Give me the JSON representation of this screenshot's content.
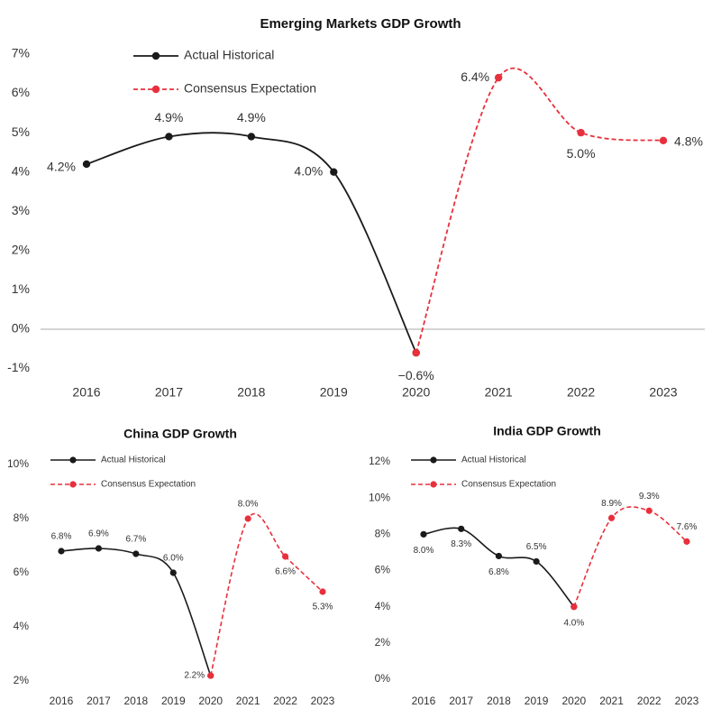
{
  "chart_data": [
    {
      "type": "line",
      "title": "Emerging Markets GDP Growth",
      "categories": [
        "2016",
        "2017",
        "2018",
        "2019",
        "2020",
        "2021",
        "2022",
        "2023"
      ],
      "series": [
        {
          "name": "Actual Historical",
          "color": "#1a1a1a",
          "dash": false,
          "values": [
            4.2,
            4.9,
            4.9,
            4.0,
            -0.6,
            null,
            null,
            null
          ],
          "value_labels": [
            "4.2%",
            "4.9%",
            "4.9%",
            "4.0%",
            "−0.6%",
            null,
            null,
            null
          ]
        },
        {
          "name": "Consensus Expectation",
          "color": "#e8303c",
          "dash": true,
          "values": [
            null,
            null,
            null,
            null,
            -0.6,
            6.4,
            5.0,
            4.8
          ],
          "value_labels": [
            null,
            null,
            null,
            null,
            null,
            "6.4%",
            "5.0%",
            "4.8%"
          ]
        }
      ],
      "ylim": [
        -1.3,
        7.3
      ],
      "yticks": [
        {
          "value": -1,
          "label": "-1%"
        },
        {
          "value": 0,
          "label": "0%"
        },
        {
          "value": 1,
          "label": "1%"
        },
        {
          "value": 2,
          "label": "2%"
        },
        {
          "value": 3,
          "label": "3%"
        },
        {
          "value": 4,
          "label": "4%"
        },
        {
          "value": 5,
          "label": "5%"
        },
        {
          "value": 6,
          "label": "6%"
        },
        {
          "value": 7,
          "label": "7%"
        }
      ],
      "legend": "upper left",
      "grid": false
    },
    {
      "type": "line",
      "title": "China GDP Growth",
      "categories": [
        "2016",
        "2017",
        "2018",
        "2019",
        "2020",
        "2021",
        "2022",
        "2023"
      ],
      "series": [
        {
          "name": "Actual Historical",
          "color": "#1a1a1a",
          "dash": false,
          "values": [
            6.8,
            6.9,
            6.7,
            6.0,
            2.2,
            null,
            null,
            null
          ],
          "value_labels": [
            "6.8%",
            "6.9%",
            "6.7%",
            "6.0%",
            "2.2%",
            null,
            null,
            null
          ]
        },
        {
          "name": "Consensus Expectation",
          "color": "#e8303c",
          "dash": true,
          "values": [
            null,
            null,
            null,
            null,
            2.2,
            8.0,
            6.6,
            5.3
          ],
          "value_labels": [
            null,
            null,
            null,
            null,
            null,
            "8.0%",
            "6.6%",
            "5.3%"
          ]
        }
      ],
      "ylim": [
        1.8,
        10.2
      ],
      "yticks": [
        {
          "value": 2,
          "label": "2%"
        },
        {
          "value": 4,
          "label": "4%"
        },
        {
          "value": 6,
          "label": "6%"
        },
        {
          "value": 8,
          "label": "8%"
        },
        {
          "value": 10,
          "label": "10%"
        }
      ],
      "legend": "upper left",
      "grid": false
    },
    {
      "type": "line",
      "title": "India GDP Growth",
      "categories": [
        "2016",
        "2017",
        "2018",
        "2019",
        "2020",
        "2021",
        "2022",
        "2023"
      ],
      "series": [
        {
          "name": "Actual Historical",
          "color": "#1a1a1a",
          "dash": false,
          "values": [
            8.0,
            8.3,
            6.8,
            6.5,
            4.0,
            null,
            null,
            null
          ],
          "value_labels": [
            "8.0%",
            "8.3%",
            "6.8%",
            "6.5%",
            "4.0%",
            null,
            null,
            null
          ]
        },
        {
          "name": "Consensus Expectation",
          "color": "#e8303c",
          "dash": true,
          "values": [
            null,
            null,
            null,
            null,
            4.0,
            8.9,
            9.3,
            7.6
          ],
          "value_labels": [
            null,
            null,
            null,
            null,
            null,
            "8.9%",
            "9.3%",
            "7.6%"
          ]
        }
      ],
      "ylim": [
        -0.3,
        12.3
      ],
      "yticks": [
        {
          "value": 0,
          "label": "0%"
        },
        {
          "value": 2,
          "label": "2%"
        },
        {
          "value": 4,
          "label": "4%"
        },
        {
          "value": 6,
          "label": "6%"
        },
        {
          "value": 8,
          "label": "8%"
        },
        {
          "value": 10,
          "label": "10%"
        },
        {
          "value": 12,
          "label": "12%"
        }
      ],
      "legend": "upper left",
      "grid": false
    }
  ]
}
